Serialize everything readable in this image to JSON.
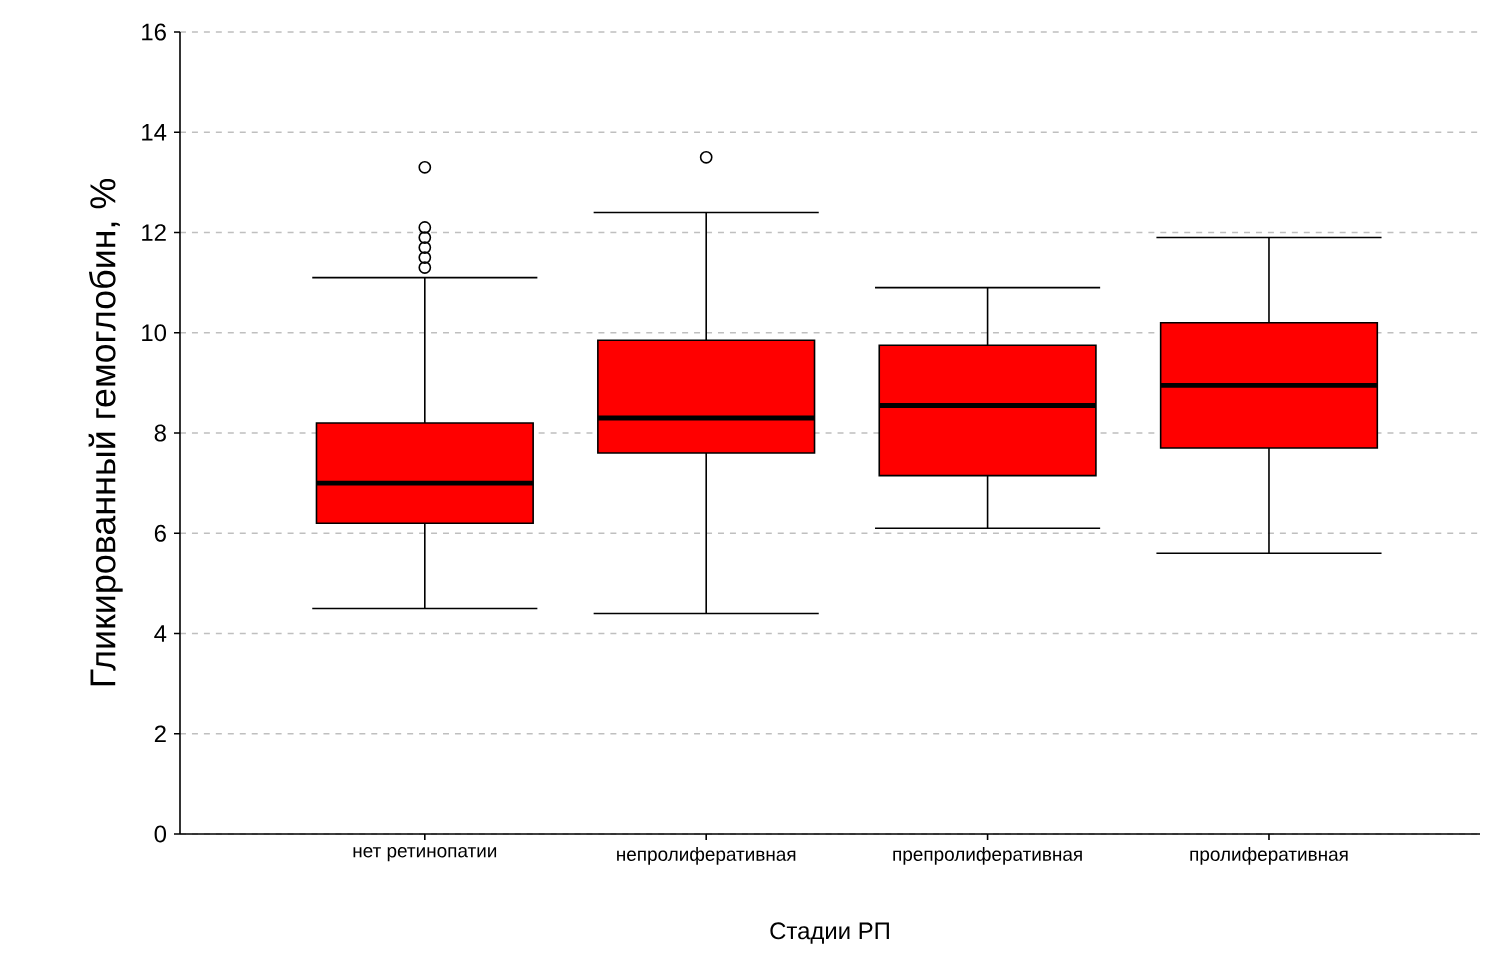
{
  "chart_data": {
    "type": "box",
    "xlabel": "Стадии РП",
    "ylabel": "Гликированный гемоглобин, %",
    "categories": [
      "нет ретинопатии",
      "непролиферативная",
      "препролиферативная",
      "пролиферативная"
    ],
    "color": "#ff0000",
    "boxes": [
      {
        "low": 4.5,
        "q1": 6.2,
        "median": 7.0,
        "q3": 8.2,
        "high": 11.1,
        "outliers": [
          13.3,
          12.1,
          11.9,
          11.7,
          11.5,
          11.3
        ]
      },
      {
        "low": 4.4,
        "q1": 7.6,
        "median": 8.3,
        "q3": 9.85,
        "high": 12.4,
        "outliers": [
          13.5
        ]
      },
      {
        "low": 6.1,
        "q1": 7.15,
        "median": 8.55,
        "q3": 9.75,
        "high": 10.9
      },
      {
        "low": 5.6,
        "q1": 7.7,
        "median": 8.95,
        "q3": 10.2,
        "high": 11.9
      }
    ],
    "ylim": [
      0,
      16
    ],
    "yticks": [
      0,
      2,
      4,
      6,
      8,
      10,
      12,
      14,
      16
    ],
    "grid": "y"
  }
}
